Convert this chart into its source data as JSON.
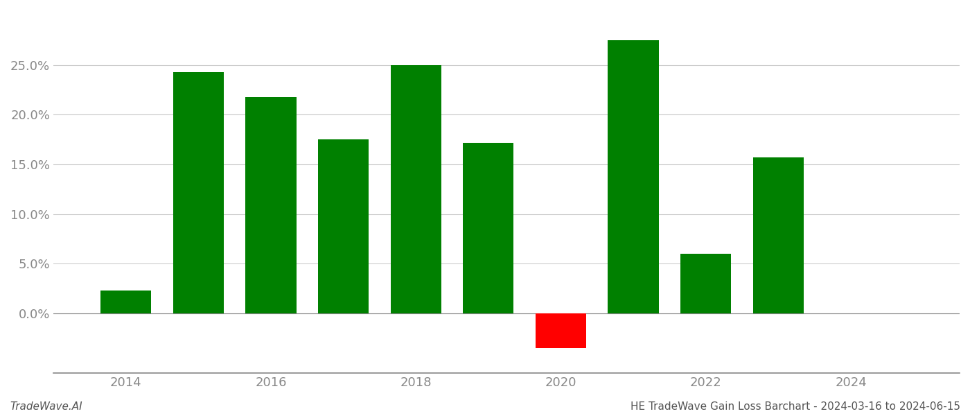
{
  "years": [
    2014,
    2015,
    2016,
    2017,
    2018,
    2019,
    2020,
    2021,
    2022,
    2023
  ],
  "values": [
    0.023,
    0.243,
    0.218,
    0.175,
    0.25,
    0.172,
    -0.035,
    0.275,
    0.06,
    0.157
  ],
  "bar_colors": [
    "#008000",
    "#008000",
    "#008000",
    "#008000",
    "#008000",
    "#008000",
    "#ff0000",
    "#008000",
    "#008000",
    "#008000"
  ],
  "ylim": [
    -0.06,
    0.305
  ],
  "yticks": [
    0.0,
    0.05,
    0.1,
    0.15,
    0.2,
    0.25
  ],
  "ytick_labels": [
    "0.0%",
    "5.0%",
    "10.0%",
    "15.0%",
    "20.0%",
    "25.0%"
  ],
  "tick_fontsize": 13,
  "grid_color": "#cccccc",
  "footer_left": "TradeWave.AI",
  "footer_right": "HE TradeWave Gain Loss Barchart - 2024-03-16 to 2024-06-15",
  "footer_fontsize": 11,
  "bg_color": "#ffffff",
  "bar_width": 0.7,
  "xlim": [
    2013.0,
    2025.5
  ]
}
